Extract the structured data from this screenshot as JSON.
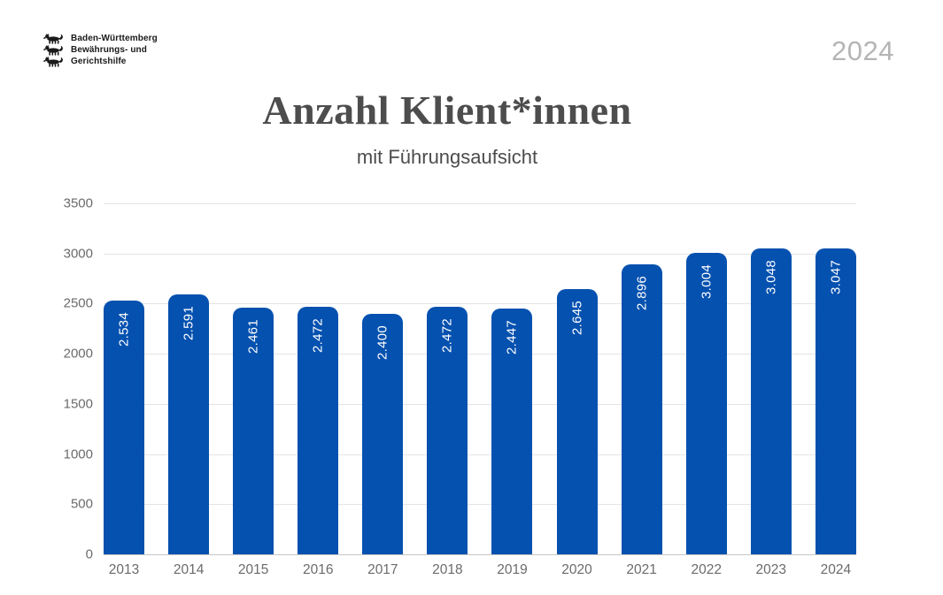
{
  "logo": {
    "lines": [
      "Baden-Württemberg",
      "Bewährungs- und",
      "Gerichtshilfe"
    ]
  },
  "year_badge": "2024",
  "header": {
    "title": "Anzahl Klient*innen",
    "subtitle": "mit Führungsaufsicht"
  },
  "chart_data": {
    "type": "bar",
    "title": "Anzahl Klient*innen",
    "subtitle": "mit Führungsaufsicht",
    "categories": [
      "2013",
      "2014",
      "2015",
      "2016",
      "2017",
      "2018",
      "2019",
      "2020",
      "2021",
      "2022",
      "2023",
      "2024"
    ],
    "values": [
      2534,
      2591,
      2461,
      2472,
      2400,
      2472,
      2447,
      2645,
      2896,
      3004,
      3048,
      3047
    ],
    "value_labels": [
      "2.534",
      "2.591",
      "2.461",
      "2.472",
      "2.400",
      "2.472",
      "2.447",
      "2.645",
      "2.896",
      "3.004",
      "3.048",
      "3.047"
    ],
    "xlabel": "",
    "ylabel": "",
    "ylim": [
      0,
      3500
    ],
    "ytick_interval": 500,
    "ytick_labels_top_to_bottom": [
      "3500",
      "3000",
      "2500",
      "2000",
      "1500",
      "1000",
      "500",
      "0"
    ],
    "grid": true,
    "legend": false,
    "bar_corner_radius_px": 10,
    "value_label_rotation": "bottom-to-top"
  },
  "colors": {
    "bar": "#0551AF",
    "bar_label": "#FFFFFF",
    "title": "#4D4D4D",
    "subtitle": "#4C4C4C",
    "year_badge": "#B5B5B5",
    "axis_label": "#6B6B6B",
    "gridline": "#E4E4E4",
    "baseline": "#C6C6C6",
    "logo_text": "#1A1A1A",
    "background": "#FFFFFF"
  }
}
